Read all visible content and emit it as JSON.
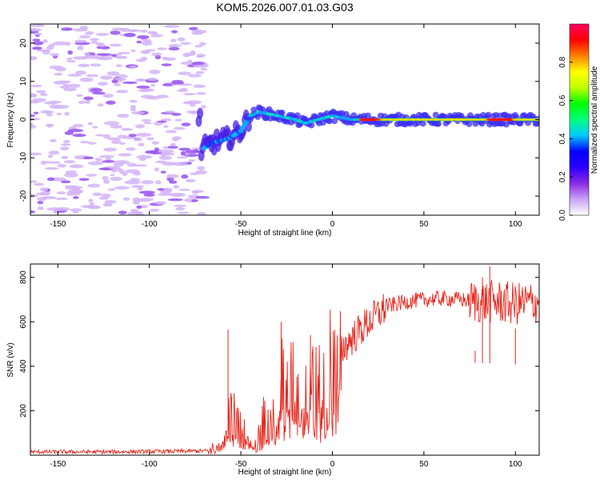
{
  "chart_data": [
    {
      "type": "heatmap",
      "title": "KOM5.2026.007.01.03.G03",
      "xlabel": "Height of straight line (km)",
      "ylabel": "Frequency (Hz)",
      "xlim": [
        -165,
        113
      ],
      "ylim": [
        -25,
        25
      ],
      "x_ticks": [
        -150,
        -100,
        -50,
        0,
        50,
        100
      ],
      "y_ticks": [
        -20,
        -10,
        0,
        10,
        20
      ],
      "colorbar": {
        "label": "Normalized spectral amplitude",
        "range": [
          0,
          1
        ],
        "ticks": [
          "0.0",
          "0.2",
          "0.4",
          "0.6",
          "0.8"
        ],
        "colors": [
          "#ffffff",
          "#c9a3f5",
          "#8a2be2",
          "#2b00ff",
          "#0000ff",
          "#00c8ff",
          "#00ff80",
          "#00ff00",
          "#bfff00",
          "#ffff00",
          "#ff8000",
          "#ff0000",
          "#ff0060"
        ]
      },
      "signal_ridge": [
        {
          "x": -72,
          "y": -8
        },
        {
          "x": -65,
          "y": -6
        },
        {
          "x": -57,
          "y": -5
        },
        {
          "x": -50,
          "y": -3
        },
        {
          "x": -45,
          "y": 1
        },
        {
          "x": -40,
          "y": 2
        },
        {
          "x": -30,
          "y": 1
        },
        {
          "x": -20,
          "y": 0
        },
        {
          "x": -15,
          "y": -1
        },
        {
          "x": -8,
          "y": 0
        },
        {
          "x": 0,
          "y": 1
        },
        {
          "x": 10,
          "y": 0
        },
        {
          "x": 20,
          "y": 0
        },
        {
          "x": 50,
          "y": 0
        },
        {
          "x": 80,
          "y": 0
        },
        {
          "x": 100,
          "y": 0
        },
        {
          "x": 113,
          "y": 0
        }
      ]
    },
    {
      "type": "line",
      "xlabel": "Height of straight line (km)",
      "ylabel": "SNR (v/v)",
      "xlim": [
        -165,
        113
      ],
      "ylim": [
        0,
        860
      ],
      "x_ticks": [
        -150,
        -100,
        -50,
        0,
        50,
        100
      ],
      "y_ticks": [
        200,
        400,
        600,
        800
      ],
      "series": [
        {
          "name": "SNR",
          "color": "#e8261c",
          "envelope": [
            {
              "x": -165,
              "y": 15
            },
            {
              "x": -120,
              "y": 15
            },
            {
              "x": -80,
              "y": 18
            },
            {
              "x": -68,
              "y": 20
            },
            {
              "x": -62,
              "y": 60
            },
            {
              "x": -58,
              "y": 180
            },
            {
              "x": -55,
              "y": 160
            },
            {
              "x": -50,
              "y": 140
            },
            {
              "x": -45,
              "y": 60
            },
            {
              "x": -42,
              "y": 40
            },
            {
              "x": -38,
              "y": 140
            },
            {
              "x": -35,
              "y": 230
            },
            {
              "x": -30,
              "y": 300
            },
            {
              "x": -25,
              "y": 340
            },
            {
              "x": -20,
              "y": 300
            },
            {
              "x": -15,
              "y": 350
            },
            {
              "x": -10,
              "y": 330
            },
            {
              "x": -5,
              "y": 280
            },
            {
              "x": 0,
              "y": 430
            },
            {
              "x": 10,
              "y": 520
            },
            {
              "x": 20,
              "y": 600
            },
            {
              "x": 30,
              "y": 670
            },
            {
              "x": 40,
              "y": 690
            },
            {
              "x": 50,
              "y": 700
            },
            {
              "x": 60,
              "y": 705
            },
            {
              "x": 70,
              "y": 700
            },
            {
              "x": 80,
              "y": 690
            },
            {
              "x": 90,
              "y": 690
            },
            {
              "x": 100,
              "y": 680
            },
            {
              "x": 113,
              "y": 690
            }
          ],
          "spikes": [
            {
              "x": -57,
              "y": 565
            },
            {
              "x": -28,
              "y": 600
            },
            {
              "x": -12,
              "y": 540
            },
            {
              "x": 78,
              "y": 470
            },
            {
              "x": 86,
              "y": 850
            },
            {
              "x": 82,
              "y": 800
            },
            {
              "x": 100,
              "y": 570
            }
          ]
        }
      ]
    }
  ]
}
